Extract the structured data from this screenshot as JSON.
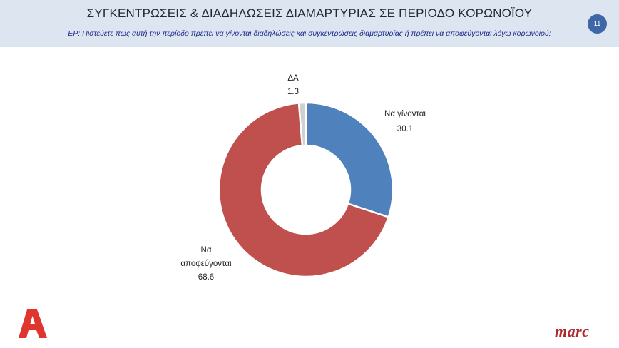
{
  "header": {
    "title": "ΣΥΓΚΕΝΤΡΩΣΕΙΣ & ΔΙΑΔΗΛΩΣΕΙΣ ΔΙΑΜΑΡΤΥΡΙΑΣ ΣΕ ΠΕΡΙΟΔΟ ΚΟΡΩΝΟΪΟΥ",
    "question": "ΕΡ: Πιστεύετε πως αυτή την περίοδο πρέπει να γίνονται διαδηλώσεις και συγκεντρώσεις διαμαρτυρίας ή πρέπει να αποφεύγονται λόγω κορωνοϊού;",
    "page_number": "11"
  },
  "chart_data": {
    "type": "pie",
    "subtype": "donut",
    "slices": [
      {
        "label": "Να γίνονται",
        "value": 30.1,
        "value_text": "30.1",
        "color": "#4f81bd"
      },
      {
        "label": "Να αποφεύγονται",
        "label_lines": [
          "Να",
          "αποφεύγονται"
        ],
        "value": 68.6,
        "value_text": "68.6",
        "color": "#c0504d"
      },
      {
        "label": "ΔΑ",
        "value": 1.3,
        "value_text": "1.3",
        "color": "#d0d0d0"
      }
    ]
  },
  "logos": {
    "left": {
      "text": "A",
      "color": "#e0342f",
      "icon": "alpha-channel-logo"
    },
    "right": {
      "text": "marc",
      "color": "#b3262b",
      "icon": "marc-logo"
    }
  }
}
